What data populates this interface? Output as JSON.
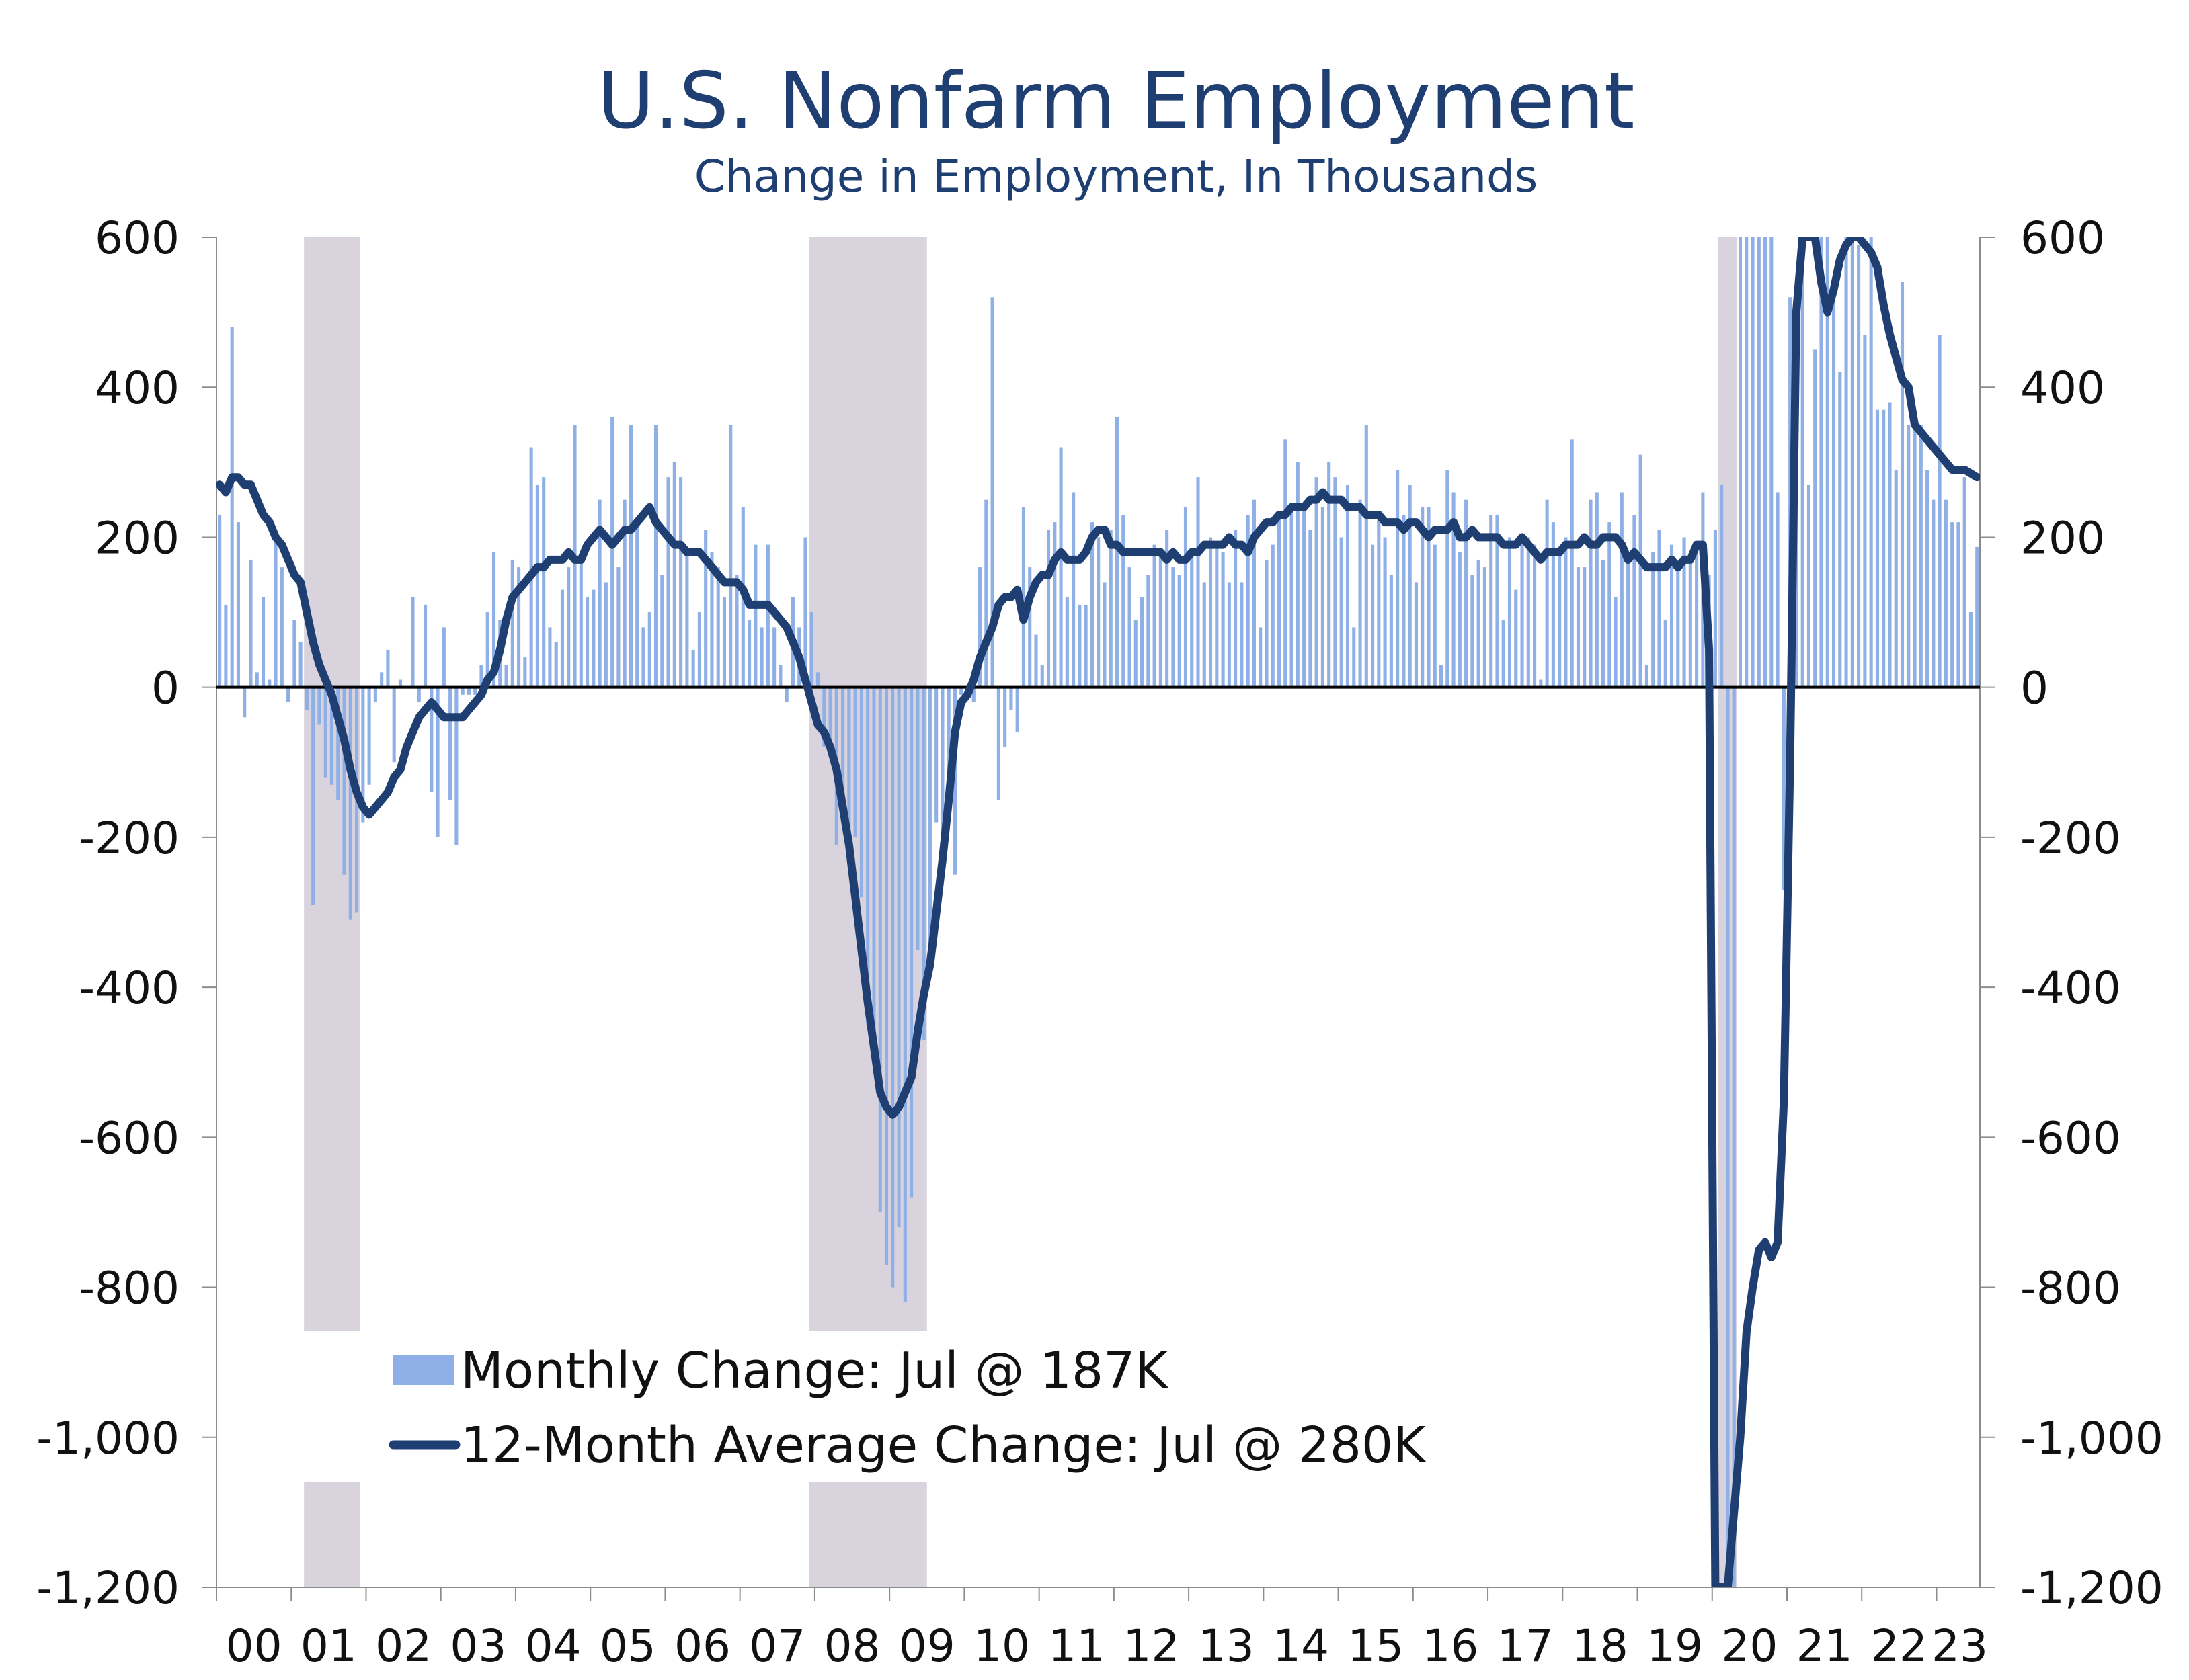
{
  "chart_data": {
    "type": "bar+line",
    "title": "U.S. Nonfarm Employment",
    "subtitle": "Change in Employment, In Thousands",
    "xlabel": "",
    "ylabel": "",
    "ylim": [
      -1200,
      600
    ],
    "y_ticks": [
      "600",
      "400",
      "200",
      "0",
      "-200",
      "-400",
      "-600",
      "-800",
      "-1,000",
      "-1,200"
    ],
    "y_tick_values": [
      600,
      400,
      200,
      0,
      -200,
      -400,
      -600,
      -800,
      -1000,
      -1200
    ],
    "x_tick_labels": [
      "00",
      "01",
      "02",
      "03",
      "04",
      "05",
      "06",
      "07",
      "08",
      "09",
      "10",
      "11",
      "12",
      "13",
      "14",
      "15",
      "16",
      "17",
      "18",
      "19",
      "20",
      "21",
      "22",
      "23"
    ],
    "x_start_year": 2000,
    "x_end_year": 2023.58,
    "bar_color": "#8fb0e6",
    "line_color": "#1f3f73",
    "recession_color": "#d8d3dc",
    "recessions": [
      [
        2001.17,
        2001.92
      ],
      [
        2007.92,
        2009.5
      ],
      [
        2020.08,
        2020.33
      ]
    ],
    "legend_placement": "bottom-left",
    "legend": [
      {
        "name": "Monthly Change: Jul @ 187K",
        "kind": "bar"
      },
      {
        "name": "12-Month Average Change: Jul @ 280K",
        "kind": "line"
      }
    ],
    "monthly_change_by_year": [
      [
        230,
        110,
        480,
        220,
        -40,
        170,
        20,
        120,
        10,
        200,
        160,
        -20
      ],
      [
        90,
        60,
        -30,
        -290,
        -50,
        -120,
        -130,
        -150,
        -250,
        -310,
        -300,
        -180
      ],
      [
        -130,
        -20,
        20,
        50,
        -100,
        10,
        0,
        120,
        -20,
        110,
        -140,
        -200
      ],
      [
        80,
        -150,
        -210,
        -10,
        -10,
        -10,
        30,
        100,
        180,
        90,
        30,
        170
      ],
      [
        160,
        40,
        320,
        270,
        280,
        80,
        60,
        130,
        160,
        350,
        170,
        120
      ],
      [
        130,
        250,
        140,
        360,
        160,
        250,
        350,
        220,
        80,
        100,
        350,
        150
      ],
      [
        280,
        300,
        280,
        180,
        50,
        100,
        210,
        180,
        160,
        120,
        350,
        150
      ],
      [
        240,
        90,
        190,
        80,
        190,
        80,
        30,
        -20,
        120,
        80,
        200,
        100
      ],
      [
        20,
        -80,
        -70,
        -210,
        -180,
        -190,
        -200,
        -280,
        -450,
        -460,
        -700,
        -770
      ],
      [
        -800,
        -720,
        -820,
        -680,
        -350,
        -470,
        -340,
        -180,
        -240,
        -170,
        -250,
        -10
      ],
      [
        -10,
        -20,
        160,
        250,
        520,
        -150,
        -80,
        -30,
        -60,
        240,
        160,
        70
      ],
      [
        30,
        210,
        220,
        320,
        120,
        260,
        110,
        110,
        220,
        200,
        140,
        210
      ],
      [
        360,
        230,
        160,
        90,
        120,
        150,
        190,
        180,
        210,
        160,
        150,
        240
      ],
      [
        180,
        280,
        140,
        200,
        190,
        180,
        140,
        210,
        140,
        230,
        250,
        80
      ],
      [
        170,
        190,
        230,
        330,
        240,
        300,
        240,
        210,
        280,
        240,
        300,
        280
      ],
      [
        200,
        270,
        80,
        250,
        350,
        190,
        230,
        200,
        150,
        290,
        230,
        270
      ],
      [
        140,
        240,
        240,
        190,
        30,
        290,
        260,
        180,
        250,
        150,
        170,
        160
      ],
      [
        230,
        230,
        90,
        200,
        130,
        200,
        200,
        190,
        10,
        250,
        220,
        180
      ],
      [
        200,
        330,
        160,
        160,
        250,
        260,
        170,
        220,
        120,
        260,
        170,
        230
      ],
      [
        310,
        30,
        180,
        210,
        90,
        190,
        160,
        200,
        180,
        190,
        260,
        150
      ],
      [
        210,
        270,
        -1370,
        -20700,
        2800,
        4800,
        1700,
        1500,
        700,
        680,
        260,
        -270
      ],
      [
        520,
        540,
        790,
        270,
        450,
        960,
        690,
        520,
        420,
        650,
        640,
        590
      ],
      [
        470,
        900,
        370,
        370,
        380,
        290,
        540,
        350,
        350,
        350,
        290,
        250
      ],
      [
        470,
        250,
        220,
        220,
        280,
        100,
        187
      ]
    ],
    "avg_change_by_year": [
      [
        270,
        260,
        280,
        280,
        270,
        270,
        250,
        230,
        220,
        200,
        190,
        170
      ],
      [
        150,
        140,
        100,
        60,
        30,
        10,
        -10,
        -40,
        -70,
        -110,
        -140,
        -160
      ],
      [
        -170,
        -160,
        -150,
        -140,
        -120,
        -110,
        -80,
        -60,
        -40,
        -30,
        -20,
        -30
      ],
      [
        -40,
        -40,
        -40,
        -40,
        -30,
        -20,
        -10,
        10,
        20,
        50,
        90,
        120
      ],
      [
        130,
        140,
        150,
        160,
        160,
        170,
        170,
        170,
        180,
        170,
        170,
        190
      ],
      [
        200,
        210,
        200,
        190,
        200,
        210,
        210,
        220,
        230,
        240,
        220,
        210
      ],
      [
        200,
        190,
        190,
        180,
        180,
        180,
        170,
        160,
        150,
        140,
        140,
        140
      ],
      [
        130,
        110,
        110,
        110,
        110,
        100,
        90,
        80,
        60,
        40,
        10,
        -20
      ],
      [
        -50,
        -60,
        -80,
        -110,
        -160,
        -210,
        -280,
        -350,
        -420,
        -480,
        -540,
        -560
      ],
      [
        -570,
        -560,
        -540,
        -520,
        -460,
        -410,
        -370,
        -300,
        -230,
        -150,
        -60,
        -20
      ],
      [
        -10,
        10,
        40,
        60,
        80,
        110,
        120,
        120,
        130,
        90,
        120,
        140
      ],
      [
        150,
        150,
        170,
        180,
        170,
        170,
        170,
        180,
        200,
        210,
        210,
        190
      ],
      [
        190,
        180,
        180,
        180,
        180,
        180,
        180,
        180,
        170,
        180,
        170,
        170
      ],
      [
        180,
        180,
        190,
        190,
        190,
        190,
        200,
        190,
        190,
        180,
        200,
        210
      ],
      [
        220,
        220,
        230,
        230,
        240,
        240,
        240,
        250,
        250,
        260,
        250,
        250
      ],
      [
        250,
        240,
        240,
        240,
        230,
        230,
        230,
        220,
        220,
        220,
        210,
        220
      ],
      [
        220,
        210,
        200,
        210,
        210,
        210,
        220,
        200,
        200,
        210,
        200,
        200
      ],
      [
        200,
        200,
        190,
        190,
        190,
        200,
        190,
        180,
        170,
        180,
        180,
        180
      ],
      [
        190,
        190,
        190,
        200,
        190,
        190,
        200,
        200,
        200,
        190,
        170,
        180
      ],
      [
        170,
        160,
        160,
        160,
        160,
        170,
        160,
        170,
        170,
        190,
        190,
        50
      ],
      [
        -1200,
        -1200,
        -1200,
        -1100,
        -1000,
        -860,
        -800,
        -750,
        -740,
        -760,
        -740,
        -550
      ],
      [
        -100,
        500,
        900,
        1200,
        900,
        540,
        500,
        530,
        570,
        590,
        600,
        600
      ],
      [
        590,
        580,
        560,
        510,
        470,
        440,
        410,
        400,
        350,
        340,
        330,
        320
      ],
      [
        310,
        300,
        290,
        290,
        290,
        285,
        280
      ]
    ]
  }
}
